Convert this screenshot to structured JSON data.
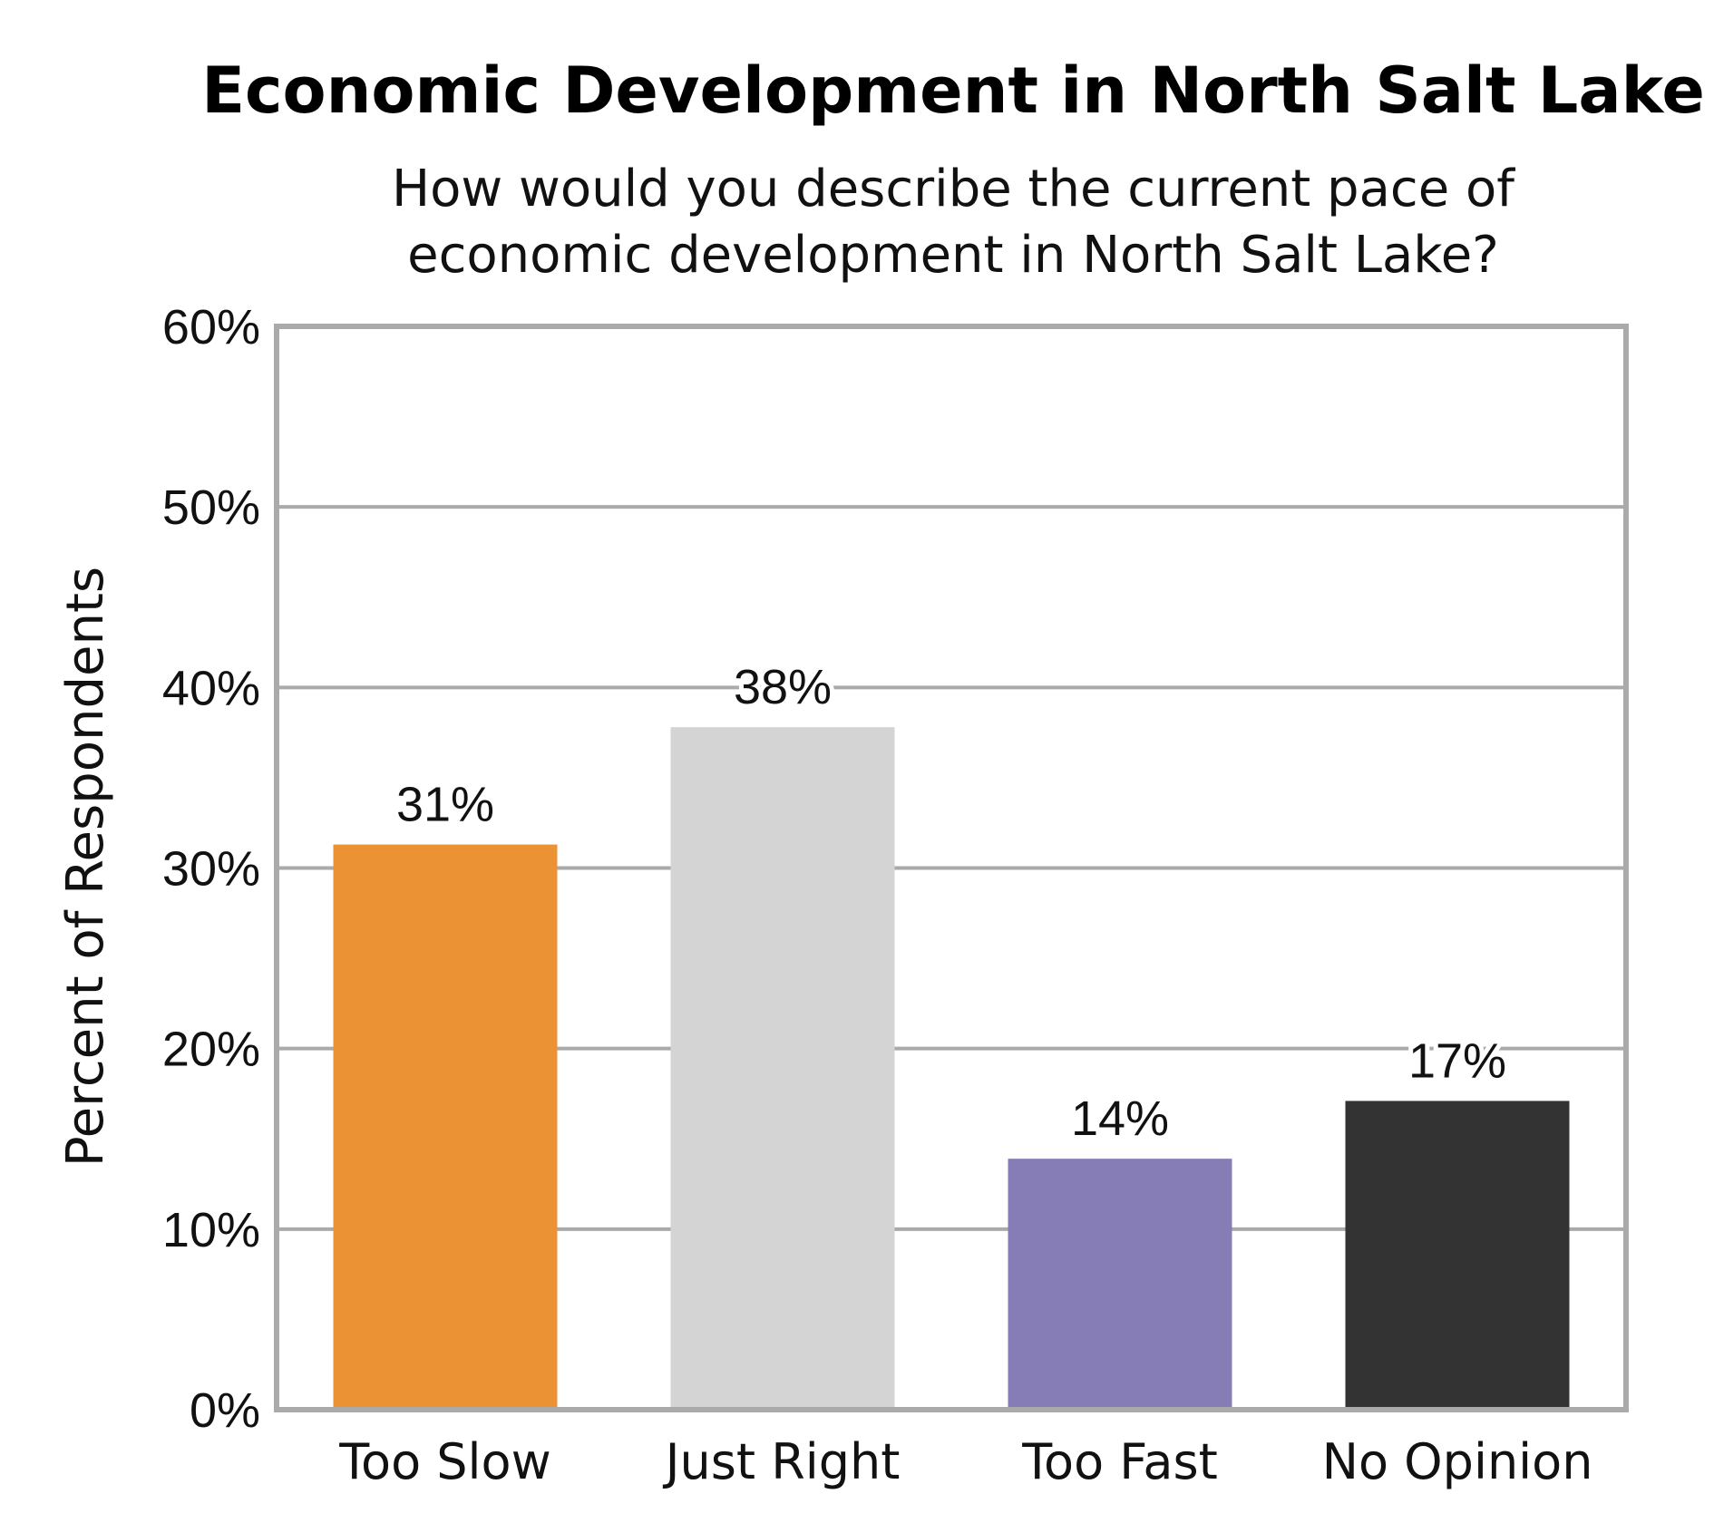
{
  "chart_data": {
    "type": "bar",
    "title": "Economic Development in North Salt Lake",
    "subtitle": [
      "How would you describe the current pace of",
      "economic development in North Salt Lake?"
    ],
    "xlabel": "",
    "ylabel": "Percent of Respondents",
    "categories": [
      "Too Slow",
      "Just Right",
      "Too Fast",
      "No Opinion"
    ],
    "values": [
      31.3,
      37.8,
      13.9,
      17.1
    ],
    "value_labels": [
      "31%",
      "38%",
      "14%",
      "17%"
    ],
    "colors": [
      "#EB9334",
      "#D4D4D4",
      "#877DB6",
      "#333333"
    ],
    "ylim": [
      0,
      60
    ],
    "yticks": [
      0,
      10,
      20,
      30,
      40,
      50,
      60
    ],
    "ytick_labels": [
      "0%",
      "10%",
      "20%",
      "30%",
      "40%",
      "50%",
      "60%"
    ],
    "grid": true,
    "legend": "none",
    "frame_color": "#AAAAAA",
    "grid_color": "#AAAAAA"
  }
}
